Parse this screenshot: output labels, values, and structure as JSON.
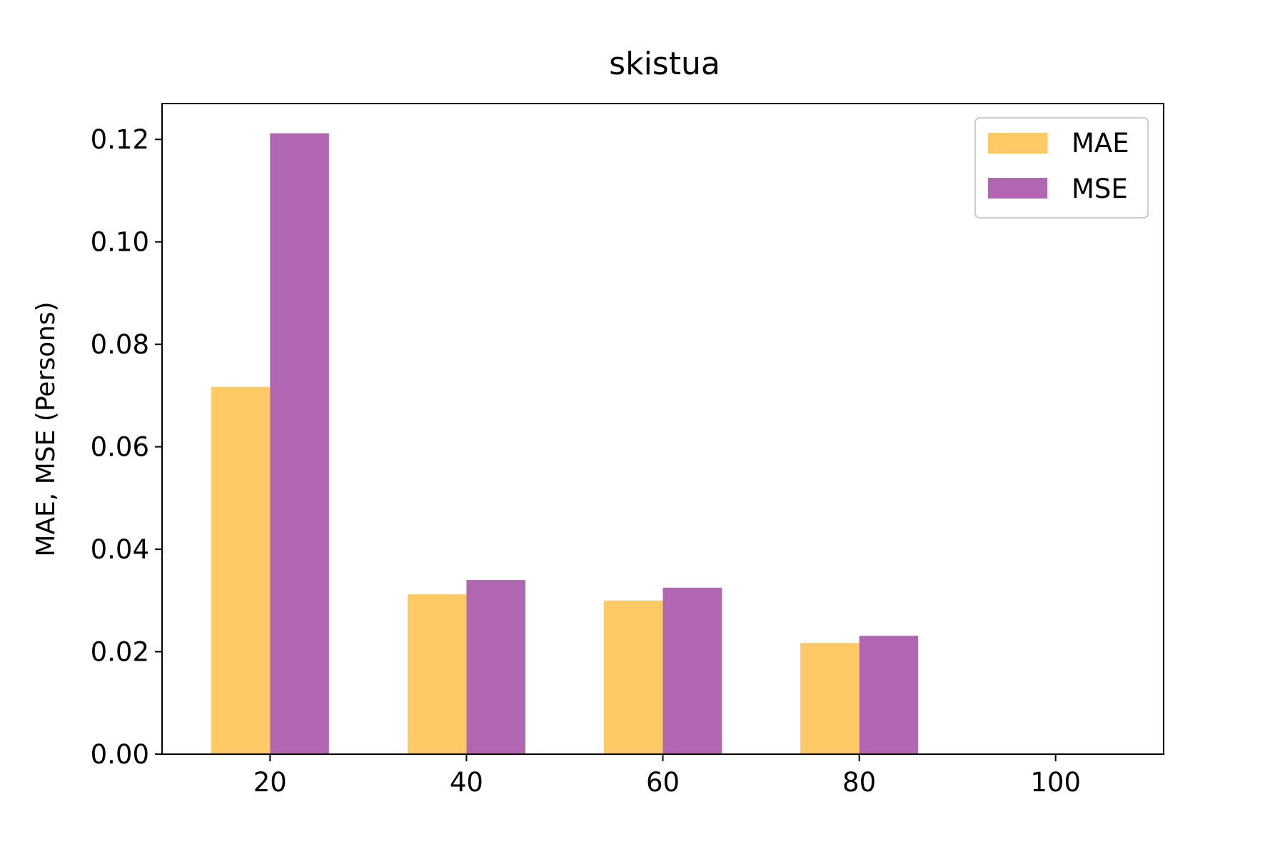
{
  "chart_data": {
    "type": "bar",
    "title": "skistua",
    "xlabel": "",
    "ylabel": "MAE, MSE (Persons)",
    "x": [
      20,
      40,
      60,
      80,
      100
    ],
    "x_ticks": [
      "20",
      "40",
      "60",
      "80",
      "100"
    ],
    "xlim": [
      9,
      111
    ],
    "ylim": [
      0,
      0.127
    ],
    "y_ticks": [
      "0.00",
      "0.02",
      "0.04",
      "0.06",
      "0.08",
      "0.10",
      "0.12"
    ],
    "y_tick_values": [
      0,
      0.02,
      0.04,
      0.06,
      0.08,
      0.1,
      0.12
    ],
    "bar_width_units": 6,
    "series": [
      {
        "name": "MAE",
        "color": "#FFC966",
        "x": [
          17,
          37,
          57,
          77
        ],
        "values": [
          0.0717,
          0.0312,
          0.03,
          0.0217
        ]
      },
      {
        "name": "MSE",
        "color": "#B166B1",
        "x": [
          23,
          43,
          63,
          83
        ],
        "values": [
          0.1212,
          0.034,
          0.0325,
          0.0231
        ]
      }
    ],
    "grid": false,
    "legend_position": "top-right"
  }
}
